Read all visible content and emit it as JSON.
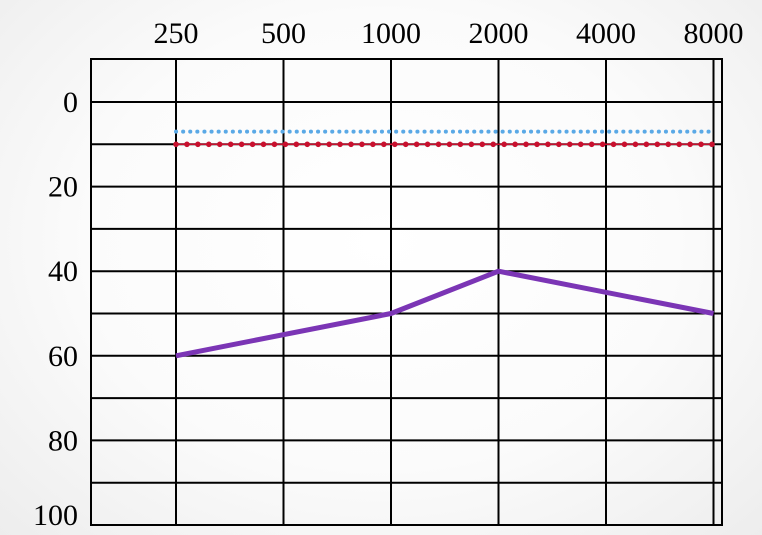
{
  "chart_data": {
    "type": "line",
    "title": "",
    "xlabel": "",
    "ylabel": "",
    "x_scale": "log2",
    "x_ticks": [
      "250",
      "500",
      "1000",
      "2000",
      "4000",
      "8000"
    ],
    "y_ticks": [
      "0",
      "20",
      "40",
      "60",
      "80",
      "100"
    ],
    "ylim": [
      0,
      100
    ],
    "y_inverted": true,
    "grid": true,
    "legend": "none",
    "series": [
      {
        "style": "dotted-blue",
        "color": "#5aa9e6",
        "x": [
          250,
          8000
        ],
        "y": [
          7,
          7
        ]
      },
      {
        "style": "dotted-red",
        "color": "#c8102e",
        "x": [
          250,
          8000
        ],
        "y": [
          10,
          10
        ]
      },
      {
        "style": "solid-purple",
        "color": "#7b35b5",
        "x": [
          250,
          1000,
          2000,
          8000
        ],
        "y": [
          60,
          50,
          40,
          50
        ]
      }
    ]
  }
}
